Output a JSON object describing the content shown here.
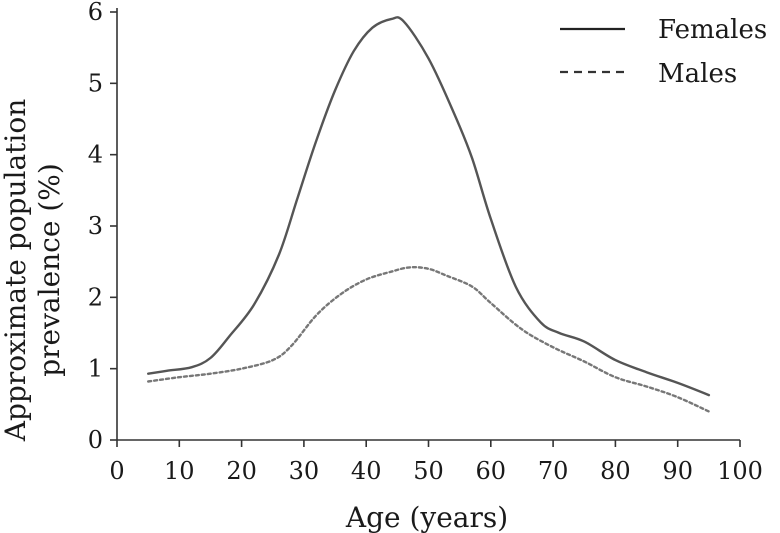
{
  "chart_data": {
    "type": "line",
    "title": "",
    "xlabel": "Age (years)",
    "ylabel_lines": [
      "Approximate population",
      "prevalence (%)"
    ],
    "xlim": [
      0,
      100
    ],
    "ylim": [
      0,
      6
    ],
    "x_ticks": [
      0,
      10,
      20,
      30,
      40,
      50,
      60,
      70,
      80,
      90,
      100
    ],
    "y_ticks": [
      0,
      1,
      2,
      3,
      4,
      5,
      6
    ],
    "grid": false,
    "legend_position": "top-right",
    "series": [
      {
        "name": "Females",
        "style": "solid",
        "color": "#555555",
        "points": [
          [
            5,
            0.93
          ],
          [
            8,
            0.97
          ],
          [
            12,
            1.02
          ],
          [
            15,
            1.15
          ],
          [
            18,
            1.45
          ],
          [
            22,
            1.9
          ],
          [
            26,
            2.6
          ],
          [
            29,
            3.4
          ],
          [
            32,
            4.2
          ],
          [
            35,
            4.9
          ],
          [
            38,
            5.45
          ],
          [
            41,
            5.78
          ],
          [
            44,
            5.9
          ],
          [
            46,
            5.87
          ],
          [
            50,
            5.35
          ],
          [
            54,
            4.6
          ],
          [
            57,
            3.95
          ],
          [
            60,
            3.1
          ],
          [
            64,
            2.15
          ],
          [
            68,
            1.65
          ],
          [
            71,
            1.5
          ],
          [
            75,
            1.38
          ],
          [
            80,
            1.12
          ],
          [
            85,
            0.95
          ],
          [
            90,
            0.8
          ],
          [
            95,
            0.63
          ]
        ]
      },
      {
        "name": "Males",
        "style": "dashed",
        "color": "#777777",
        "points": [
          [
            5,
            0.82
          ],
          [
            10,
            0.88
          ],
          [
            15,
            0.93
          ],
          [
            20,
            1.0
          ],
          [
            25,
            1.12
          ],
          [
            28,
            1.32
          ],
          [
            32,
            1.75
          ],
          [
            36,
            2.05
          ],
          [
            40,
            2.25
          ],
          [
            44,
            2.36
          ],
          [
            47,
            2.42
          ],
          [
            50,
            2.4
          ],
          [
            53,
            2.3
          ],
          [
            57,
            2.15
          ],
          [
            60,
            1.92
          ],
          [
            65,
            1.55
          ],
          [
            70,
            1.3
          ],
          [
            75,
            1.1
          ],
          [
            80,
            0.88
          ],
          [
            85,
            0.75
          ],
          [
            90,
            0.6
          ],
          [
            95,
            0.4
          ]
        ]
      }
    ]
  }
}
